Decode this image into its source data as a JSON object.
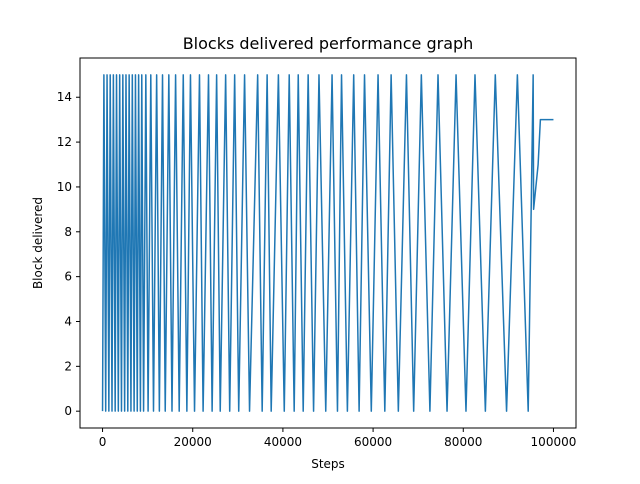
{
  "chart_data": {
    "type": "line",
    "title": "Blocks delivered performance graph",
    "xlabel": "Steps",
    "ylabel": "Block delivered",
    "xlim": [
      -5000,
      105000
    ],
    "ylim": [
      -0.75,
      15.75
    ],
    "x_ticks": [
      0,
      20000,
      40000,
      60000,
      80000,
      100000
    ],
    "y_ticks": [
      0,
      2,
      4,
      6,
      8,
      10,
      12,
      14
    ],
    "grid": false,
    "legend": "none",
    "series": [
      {
        "color": "#1f77b4",
        "points": [
          [
            0,
            0
          ],
          [
            300,
            15
          ],
          [
            700,
            0
          ],
          [
            1000,
            15
          ],
          [
            1400,
            0
          ],
          [
            1700,
            15
          ],
          [
            2100,
            0
          ],
          [
            2400,
            15
          ],
          [
            2800,
            0
          ],
          [
            3100,
            15
          ],
          [
            3500,
            0
          ],
          [
            3800,
            15
          ],
          [
            4200,
            0
          ],
          [
            4500,
            15
          ],
          [
            4900,
            0
          ],
          [
            5200,
            15
          ],
          [
            5600,
            0
          ],
          [
            5900,
            15
          ],
          [
            6300,
            0
          ],
          [
            6600,
            15
          ],
          [
            7000,
            0
          ],
          [
            7300,
            15
          ],
          [
            7700,
            0
          ],
          [
            8000,
            15
          ],
          [
            8400,
            0
          ],
          [
            8700,
            15
          ],
          [
            9100,
            0
          ],
          [
            9600,
            15
          ],
          [
            10100,
            0
          ],
          [
            10700,
            15
          ],
          [
            11300,
            0
          ],
          [
            12000,
            15
          ],
          [
            12600,
            0
          ],
          [
            13300,
            15
          ],
          [
            13900,
            0
          ],
          [
            14700,
            15
          ],
          [
            15400,
            0
          ],
          [
            16200,
            15
          ],
          [
            17000,
            0
          ],
          [
            17900,
            15
          ],
          [
            18700,
            0
          ],
          [
            19500,
            15
          ],
          [
            20400,
            0
          ],
          [
            21500,
            15
          ],
          [
            22300,
            0
          ],
          [
            23500,
            15
          ],
          [
            24300,
            0
          ],
          [
            25300,
            15
          ],
          [
            26100,
            0
          ],
          [
            27300,
            15
          ],
          [
            28200,
            0
          ],
          [
            29300,
            15
          ],
          [
            30200,
            0
          ],
          [
            31500,
            15
          ],
          [
            32600,
            0
          ],
          [
            34400,
            15
          ],
          [
            35400,
            0
          ],
          [
            36500,
            15
          ],
          [
            37400,
            0
          ],
          [
            39000,
            15
          ],
          [
            40300,
            0
          ],
          [
            41400,
            15
          ],
          [
            42500,
            0
          ],
          [
            43400,
            15
          ],
          [
            44500,
            0
          ],
          [
            45600,
            15
          ],
          [
            46800,
            0
          ],
          [
            48000,
            15
          ],
          [
            49500,
            0
          ],
          [
            50900,
            15
          ],
          [
            52100,
            0
          ],
          [
            53000,
            15
          ],
          [
            54300,
            0
          ],
          [
            55700,
            15
          ],
          [
            56900,
            0
          ],
          [
            58100,
            15
          ],
          [
            59600,
            0
          ],
          [
            61100,
            15
          ],
          [
            62600,
            0
          ],
          [
            64000,
            15
          ],
          [
            65600,
            0
          ],
          [
            67400,
            15
          ],
          [
            69000,
            0
          ],
          [
            70700,
            15
          ],
          [
            72600,
            0
          ],
          [
            74400,
            15
          ],
          [
            76400,
            0
          ],
          [
            78400,
            15
          ],
          [
            80600,
            0
          ],
          [
            82600,
            15
          ],
          [
            84900,
            0
          ],
          [
            87100,
            15
          ],
          [
            89600,
            0
          ],
          [
            92000,
            15
          ],
          [
            94400,
            0
          ],
          [
            95500,
            15
          ],
          [
            95600,
            9
          ],
          [
            96600,
            11
          ],
          [
            97100,
            13
          ],
          [
            98700,
            13
          ],
          [
            100000,
            13
          ]
        ]
      }
    ]
  }
}
